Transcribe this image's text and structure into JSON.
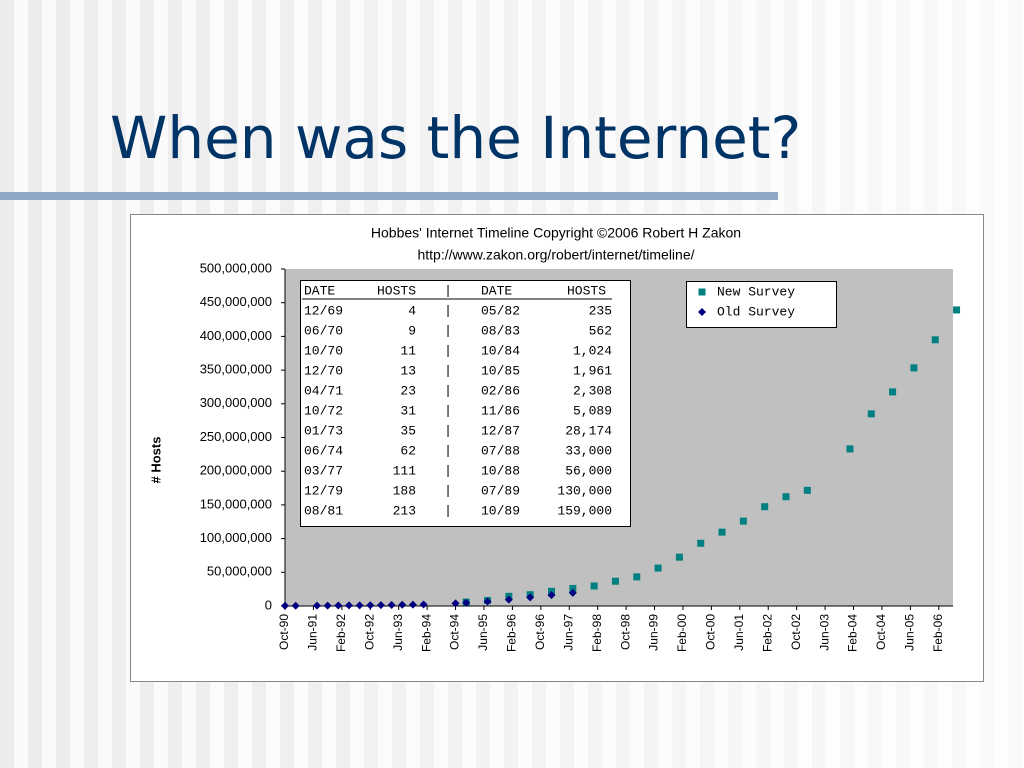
{
  "slide": {
    "title": "When was the Internet?"
  },
  "chart_data": {
    "type": "scatter",
    "title": "Hobbes' Internet Timeline Copyright ©2006 Robert H Zakon",
    "subtitle": "http://www.zakon.org/robert/internet/timeline/",
    "y_label": "# Hosts",
    "xlim": [
      "Oct-90",
      "Jun-06"
    ],
    "xticks": [
      "Oct-90",
      "Jun-91",
      "Feb-92",
      "Oct-92",
      "Jun-93",
      "Feb-94",
      "Oct-94",
      "Jun-95",
      "Feb-96",
      "Oct-96",
      "Jun-97",
      "Feb-98",
      "Oct-98",
      "Jun-99",
      "Feb-00",
      "Oct-00",
      "Jun-01",
      "Feb-02",
      "Oct-02",
      "Jun-03",
      "Feb-04",
      "Oct-04",
      "Jun-05",
      "Feb-06"
    ],
    "ylim": [
      0,
      500000000
    ],
    "yticks": [
      0,
      {
        "value": 50000000,
        "label": "50,000,000"
      },
      {
        "value": 100000000,
        "label": "100,000,000"
      },
      {
        "value": 150000000,
        "label": "150,000,000"
      },
      {
        "value": 200000000,
        "label": "200,000,000"
      },
      {
        "value": 250000000,
        "label": "250,000,000"
      },
      {
        "value": 300000000,
        "label": "300,000,000"
      },
      {
        "value": 350000000,
        "label": "350,000,000"
      },
      {
        "value": 400000000,
        "label": "400,000,000"
      },
      {
        "value": 450000000,
        "label": "450,000,000"
      },
      {
        "value": 500000000,
        "label": "500,000,000"
      }
    ],
    "legend": "top right",
    "plot_background": "#c0c0c0",
    "series": [
      {
        "name": "New Survey",
        "color": "#008080",
        "marker": "square",
        "x": [
          "Jan-95",
          "Jul-95",
          "Jan-96",
          "Jul-96",
          "Jan-97",
          "Jul-97",
          "Jan-98",
          "Jul-98",
          "Jan-99",
          "Jul-99",
          "Jan-00",
          "Jul-00",
          "Jan-01",
          "Jul-01",
          "Jan-02",
          "Jul-02",
          "Jan-03",
          "Jan-04",
          "Jul-04",
          "Jan-05",
          "Jul-05",
          "Jan-06",
          "Jul-06"
        ],
        "values": [
          5846000,
          8200000,
          14352000,
          16729000,
          21819000,
          26053000,
          29670000,
          36739000,
          43230000,
          56218000,
          72398092,
          93047785,
          109574429,
          125888197,
          147344723,
          162128493,
          171638297,
          233101481,
          285139107,
          317646084,
          353284187,
          394991609,
          439286364
        ]
      },
      {
        "name": "Old Survey",
        "color": "#000080",
        "marker": "diamond",
        "x": [
          "Oct-90",
          "Jan-91",
          "Jul-91",
          "Oct-91",
          "Jan-92",
          "Apr-92",
          "Jul-92",
          "Oct-92",
          "Jan-93",
          "Apr-93",
          "Jul-93",
          "Oct-93",
          "Jan-94",
          "Oct-94",
          "Jan-95",
          "Jul-95",
          "Jan-96",
          "Jul-96",
          "Jan-97",
          "Jul-97"
        ],
        "values": [
          313000,
          376000,
          535000,
          617000,
          727000,
          890000,
          992000,
          1136000,
          1313000,
          1486000,
          1776000,
          2056000,
          2217000,
          3864000,
          4852000,
          6642000,
          9472000,
          12881000,
          16146000,
          19540000
        ]
      }
    ],
    "table": {
      "header": [
        "DATE",
        "HOSTS",
        "|",
        "DATE",
        "HOSTS"
      ],
      "rows": [
        [
          "12/69",
          "4",
          "|",
          "05/82",
          "235"
        ],
        [
          "06/70",
          "9",
          "|",
          "08/83",
          "562"
        ],
        [
          "10/70",
          "11",
          "|",
          "10/84",
          "1,024"
        ],
        [
          "12/70",
          "13",
          "|",
          "10/85",
          "1,961"
        ],
        [
          "04/71",
          "23",
          "|",
          "02/86",
          "2,308"
        ],
        [
          "10/72",
          "31",
          "|",
          "11/86",
          "5,089"
        ],
        [
          "01/73",
          "35",
          "|",
          "12/87",
          "28,174"
        ],
        [
          "06/74",
          "62",
          "|",
          "07/88",
          "33,000"
        ],
        [
          "03/77",
          "111",
          "|",
          "10/88",
          "56,000"
        ],
        [
          "12/79",
          "188",
          "|",
          "07/89",
          "130,000"
        ],
        [
          "08/81",
          "213",
          "|",
          "10/89",
          "159,000"
        ]
      ]
    }
  }
}
